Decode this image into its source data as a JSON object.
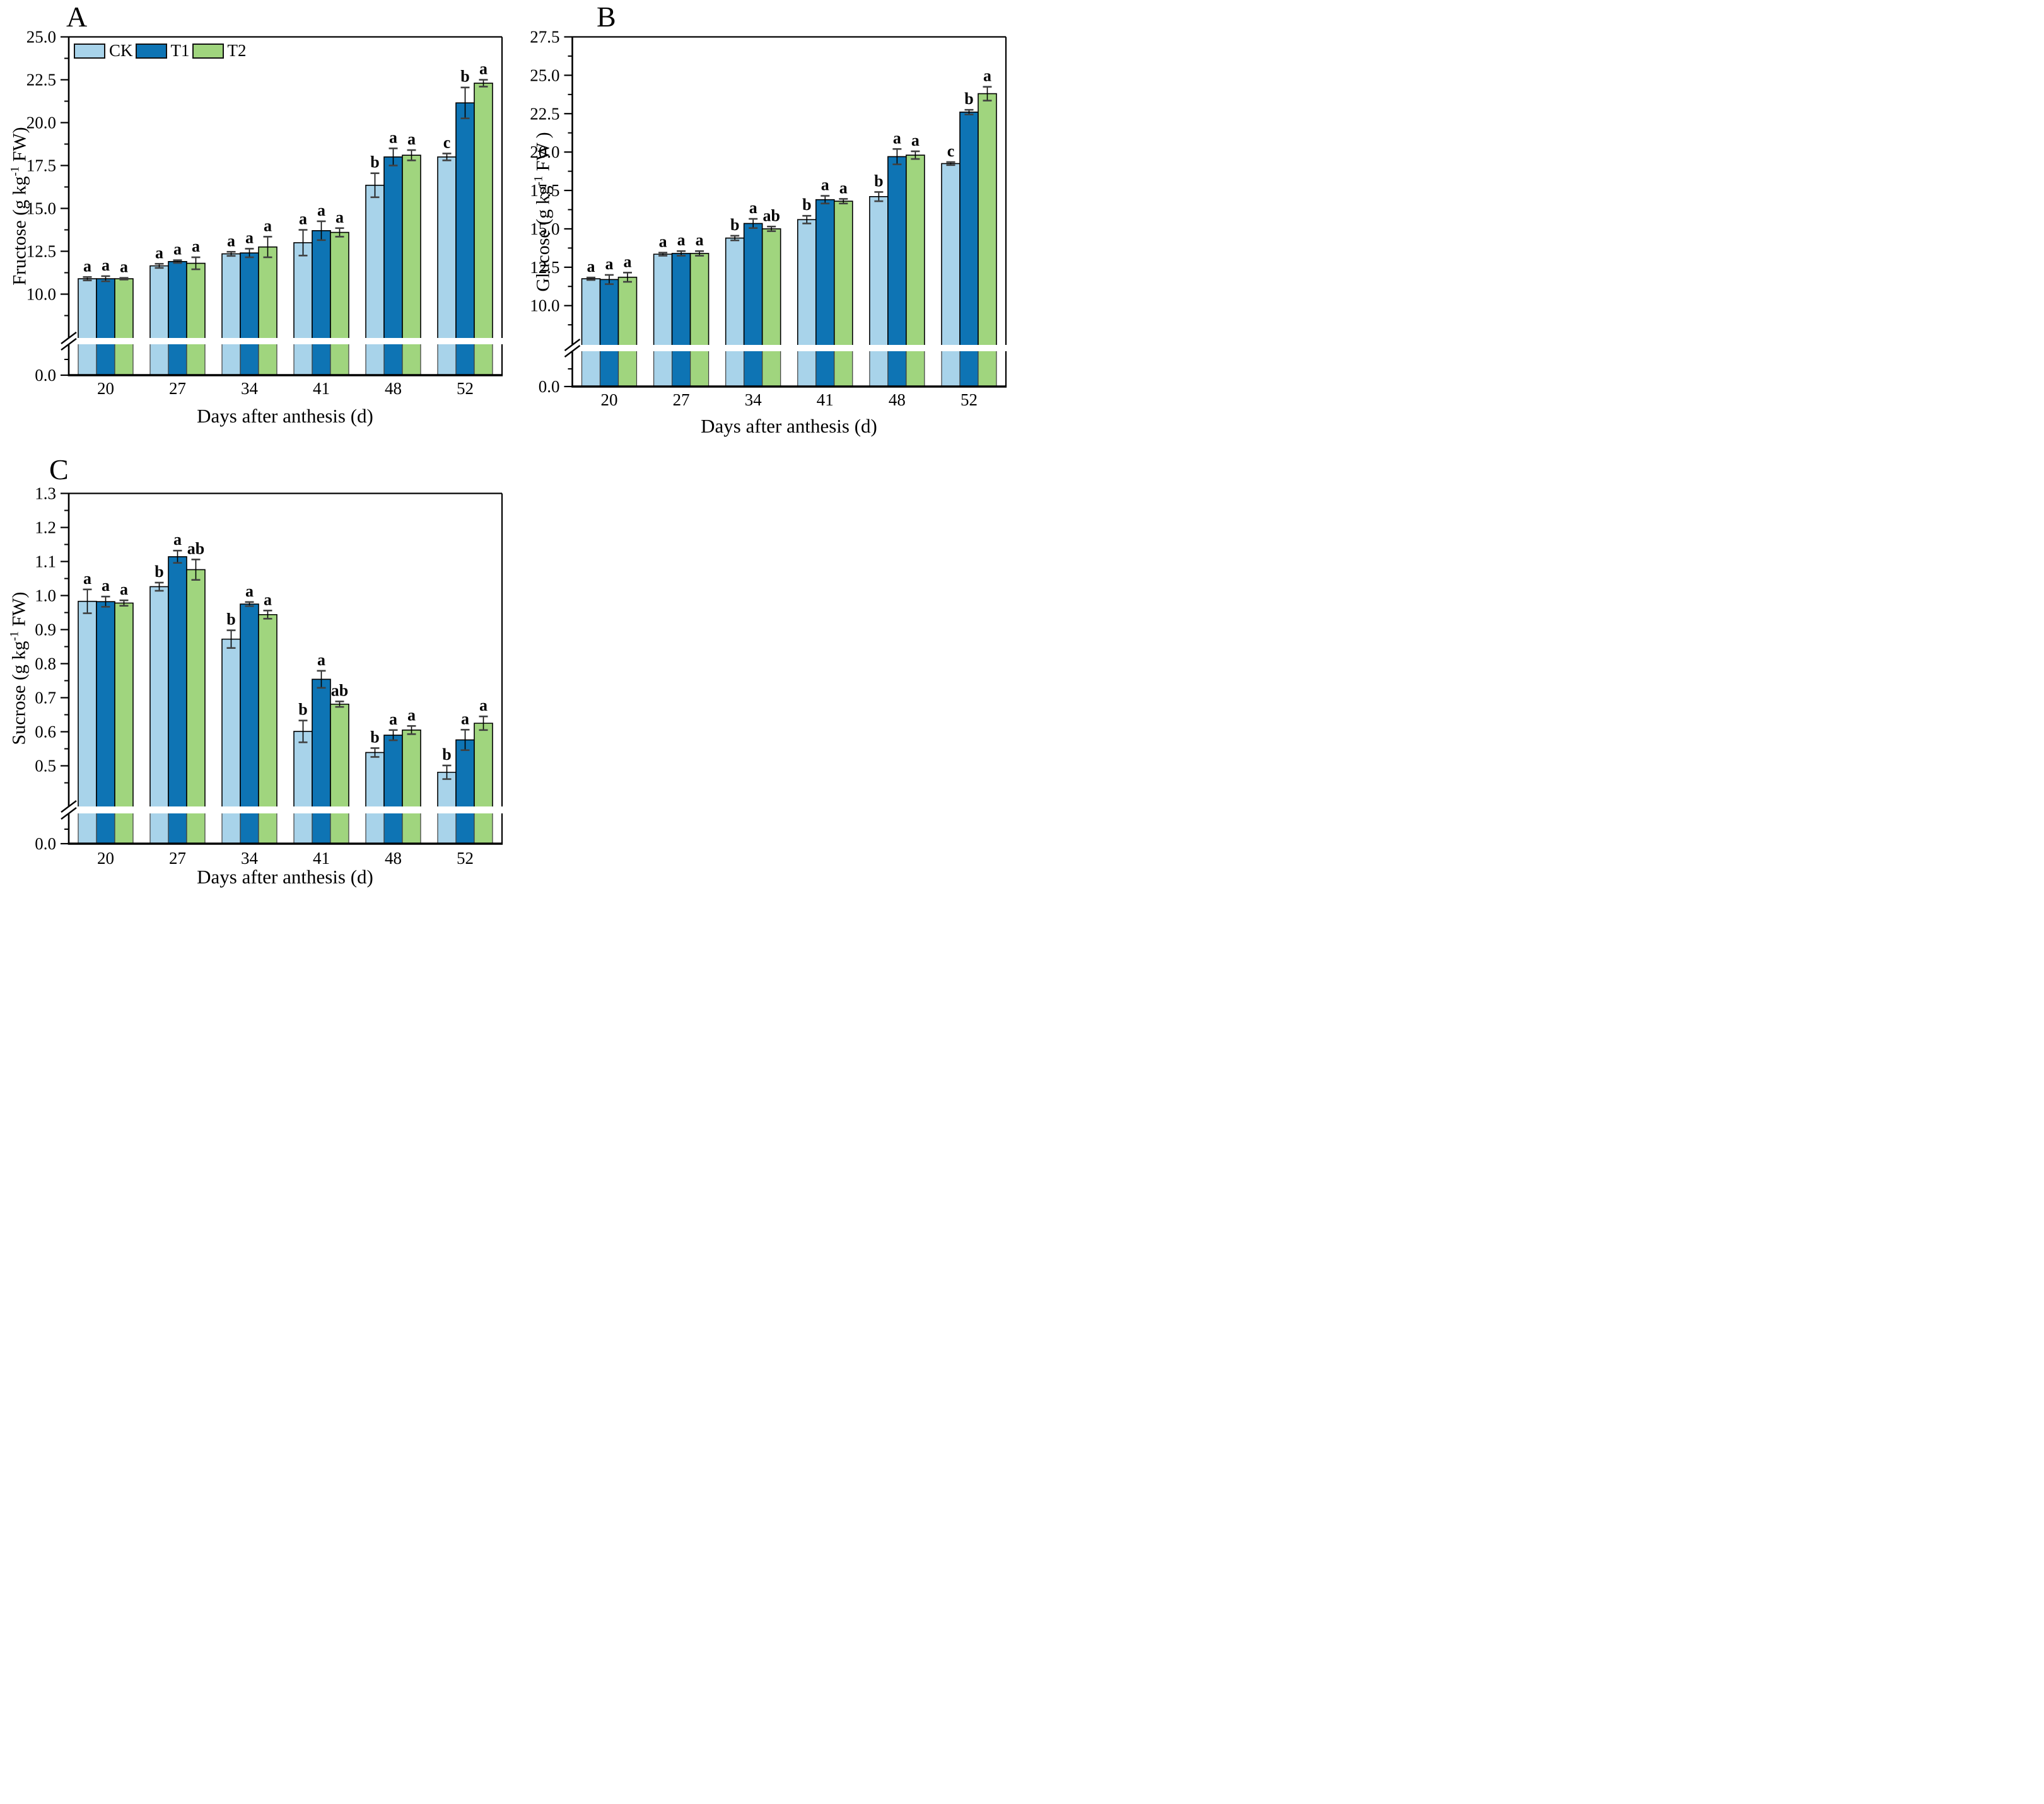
{
  "colors": {
    "series": [
      "#a8d3ea",
      "#0e74b4",
      "#a0d57e"
    ],
    "bar_border": "#000000",
    "stub_border": "#3c3c3c",
    "error_bar": "#000000",
    "error_cap": "#404040",
    "axis": "#000000"
  },
  "chart_data": [
    {
      "type": "bar",
      "panel_label": "A",
      "ylabel": {
        "pre": "Fructose (g kg",
        "sup": "-1",
        "post": " FW)"
      },
      "xlabel": "Days after anthesis (d)",
      "categories": [
        "20",
        "27",
        "34",
        "41",
        "48",
        "52"
      ],
      "series": [
        {
          "name": "CK",
          "values": [
            10.9,
            11.65,
            12.35,
            13.0,
            16.35,
            18.0
          ],
          "errors": [
            0.1,
            0.12,
            0.12,
            0.75,
            0.7,
            0.2
          ],
          "letters": [
            "a",
            "a",
            "a",
            "a",
            "b",
            "c"
          ]
        },
        {
          "name": "T1",
          "values": [
            10.9,
            11.9,
            12.4,
            13.7,
            18.0,
            21.15
          ],
          "errors": [
            0.15,
            0.08,
            0.25,
            0.55,
            0.5,
            0.9
          ],
          "letters": [
            "a",
            "a",
            "a",
            "a",
            "a",
            "b"
          ]
        },
        {
          "name": "T2",
          "values": [
            10.9,
            11.8,
            12.75,
            13.6,
            18.1,
            22.3
          ],
          "errors": [
            0.05,
            0.35,
            0.6,
            0.25,
            0.3,
            0.2
          ],
          "letters": [
            "a",
            "a",
            "a",
            "a",
            "a",
            "a"
          ]
        }
      ],
      "y_axis": {
        "ylim": [
          0.0,
          25.0
        ],
        "tick_min": 10.0,
        "tick_max": 25.0,
        "major_step": 2.5,
        "minor_step": 1.25,
        "decimals": 1,
        "zero_label": "0.0",
        "break_below": 10.0
      },
      "legend": true,
      "grid": false
    },
    {
      "type": "bar",
      "panel_label": "B",
      "ylabel": {
        "pre": "Glucose (g kg",
        "sup": "-1",
        "post": " FW )"
      },
      "xlabel": "Days after anthesis (d)",
      "categories": [
        "20",
        "27",
        "34",
        "41",
        "48",
        "52"
      ],
      "series": [
        {
          "name": "CK",
          "values": [
            11.75,
            13.35,
            14.4,
            15.6,
            17.1,
            19.25
          ],
          "errors": [
            0.08,
            0.1,
            0.15,
            0.25,
            0.3,
            0.1
          ],
          "letters": [
            "a",
            "a",
            "b",
            "b",
            "b",
            "c"
          ]
        },
        {
          "name": "T1",
          "values": [
            11.7,
            13.4,
            15.35,
            16.9,
            19.7,
            22.6
          ],
          "errors": [
            0.3,
            0.15,
            0.3,
            0.25,
            0.5,
            0.15
          ],
          "letters": [
            "a",
            "a",
            "a",
            "a",
            "a",
            "b"
          ]
        },
        {
          "name": "T2",
          "values": [
            11.85,
            13.4,
            15.0,
            16.8,
            19.8,
            23.8
          ],
          "errors": [
            0.3,
            0.15,
            0.15,
            0.15,
            0.25,
            0.45
          ],
          "letters": [
            "a",
            "a",
            "ab",
            "a",
            "a",
            "a"
          ]
        }
      ],
      "y_axis": {
        "ylim": [
          0.0,
          27.5
        ],
        "tick_min": 10.0,
        "tick_max": 27.5,
        "major_step": 2.5,
        "minor_step": 1.25,
        "decimals": 1,
        "zero_label": "0.0",
        "break_below": 10.0
      },
      "legend": false,
      "grid": false
    },
    {
      "type": "bar",
      "panel_label": "C",
      "ylabel": {
        "pre": "Sucrose (g kg",
        "sup": "-1",
        "post": " FW)"
      },
      "xlabel": "Days after anthesis (d)",
      "categories": [
        "20",
        "27",
        "34",
        "41",
        "48",
        "52"
      ],
      "series": [
        {
          "name": "CK",
          "values": [
            0.983,
            1.026,
            0.872,
            0.601,
            0.539,
            0.481
          ],
          "errors": [
            0.035,
            0.012,
            0.026,
            0.032,
            0.013,
            0.02
          ],
          "letters": [
            "a",
            "b",
            "b",
            "b",
            "b",
            "b"
          ]
        },
        {
          "name": "T1",
          "values": [
            0.982,
            1.114,
            0.975,
            0.754,
            0.59,
            0.576
          ],
          "errors": [
            0.015,
            0.018,
            0.006,
            0.025,
            0.015,
            0.03
          ],
          "letters": [
            "a",
            "a",
            "a",
            "a",
            "a",
            "a"
          ]
        },
        {
          "name": "T2",
          "values": [
            0.978,
            1.076,
            0.944,
            0.681,
            0.605,
            0.625
          ],
          "errors": [
            0.008,
            0.03,
            0.012,
            0.008,
            0.012,
            0.02
          ],
          "letters": [
            "a",
            "ab",
            "a",
            "ab",
            "a",
            "a"
          ]
        }
      ],
      "y_axis": {
        "ylim": [
          0.0,
          1.3
        ],
        "tick_min": 0.5,
        "tick_max": 1.3,
        "major_step": 0.1,
        "minor_step": 0.05,
        "decimals": 1,
        "zero_label": "0.0",
        "break_below": 0.5
      },
      "legend": false,
      "grid": false
    }
  ]
}
